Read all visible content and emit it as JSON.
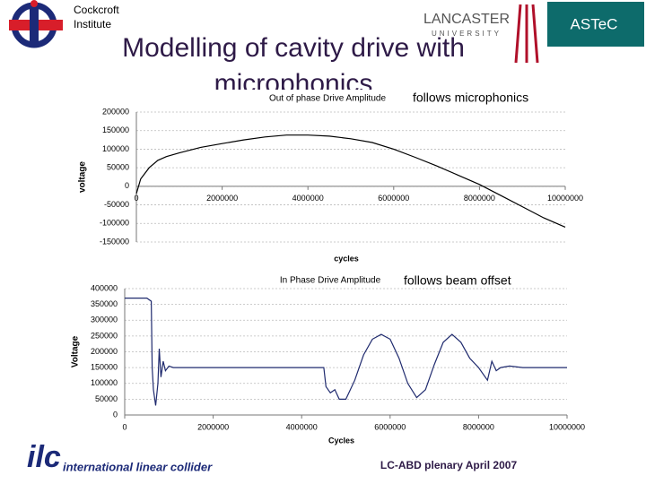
{
  "slide": {
    "institute": [
      "Cockcroft",
      "Institute"
    ],
    "title_lines": [
      "Modelling of cavity drive  with",
      "microphonics"
    ],
    "lancaster": [
      "LANCASTER",
      "UNIVERSITY"
    ],
    "astec": "ASTeC",
    "ilc": [
      "ilc",
      "international linear collider"
    ],
    "footer": "LC-ABD plenary April 2007"
  },
  "chart_data": [
    {
      "type": "line",
      "title": "Out of phase Drive Amplitude",
      "x_label": "cycles",
      "y_label": "voltage",
      "annotation": "follows microphonics",
      "x": [
        0,
        100000,
        300000,
        500000,
        700000,
        1000000,
        1500000,
        2000000,
        2500000,
        3000000,
        3500000,
        4000000,
        4500000,
        5000000,
        5500000,
        6000000,
        6500000,
        7000000,
        7500000,
        8000000,
        8500000,
        9000000,
        9500000,
        10000000
      ],
      "series": [
        {
          "name": "Out of phase Drive Amplitude",
          "color": "#000000",
          "values": [
            -20000,
            20000,
            50000,
            70000,
            80000,
            90000,
            105000,
            115000,
            125000,
            133000,
            138000,
            138000,
            135000,
            128000,
            118000,
            100000,
            78000,
            55000,
            30000,
            5000,
            -25000,
            -55000,
            -85000,
            -110000
          ]
        }
      ],
      "xlim": [
        0,
        10000000
      ],
      "xticks": [
        0,
        2000000,
        4000000,
        6000000,
        8000000,
        10000000
      ],
      "ylim": [
        -150000,
        200000
      ],
      "yticks": [
        -150000,
        -100000,
        -50000,
        0,
        50000,
        100000,
        150000,
        200000
      ],
      "grid": true
    },
    {
      "type": "line",
      "title": "In Phase Drive Amplitude",
      "x_label": "Cycles",
      "y_label": "Voltage",
      "annotation": "follows beam offset",
      "x": [
        0,
        500000,
        600000,
        620000,
        650000,
        700000,
        750000,
        780000,
        820000,
        870000,
        920000,
        1000000,
        1100000,
        2000000,
        3000000,
        4000000,
        4500000,
        4550000,
        4650000,
        4750000,
        4850000,
        5000000,
        5200000,
        5400000,
        5600000,
        5800000,
        6000000,
        6200000,
        6400000,
        6600000,
        6800000,
        7000000,
        7200000,
        7400000,
        7600000,
        7800000,
        8000000,
        8200000,
        8300000,
        8400000,
        8500000,
        8700000,
        9000000,
        10000000
      ],
      "series": [
        {
          "name": "In Phase Drive Amplitude",
          "color": "#1f2a6e",
          "values": [
            370000,
            370000,
            360000,
            150000,
            80000,
            30000,
            100000,
            210000,
            120000,
            170000,
            140000,
            155000,
            150000,
            150000,
            150000,
            150000,
            150000,
            90000,
            70000,
            80000,
            50000,
            50000,
            110000,
            190000,
            240000,
            255000,
            240000,
            180000,
            100000,
            55000,
            80000,
            160000,
            230000,
            255000,
            230000,
            180000,
            150000,
            110000,
            170000,
            140000,
            150000,
            155000,
            150000,
            150000
          ]
        }
      ],
      "xlim": [
        0,
        10000000
      ],
      "xticks": [
        0,
        2000000,
        4000000,
        6000000,
        8000000,
        10000000
      ],
      "ylim": [
        0,
        400000
      ],
      "yticks": [
        0,
        50000,
        100000,
        150000,
        200000,
        250000,
        300000,
        350000,
        400000
      ],
      "grid": true
    }
  ]
}
